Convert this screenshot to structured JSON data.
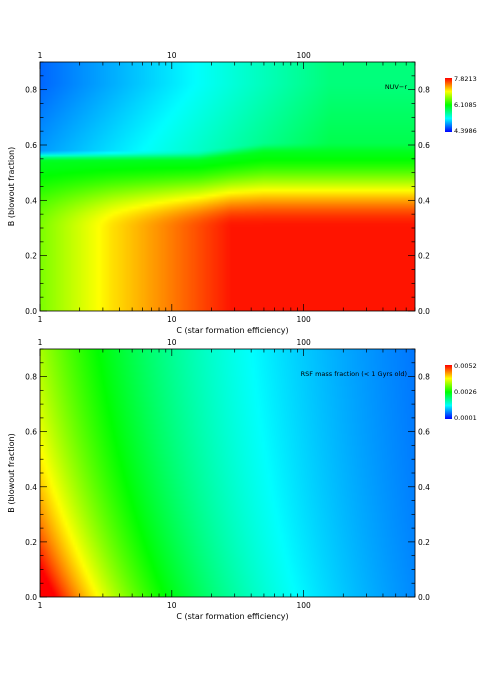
{
  "chart_data": [
    {
      "type": "heatmap",
      "annotation": "NUV−r",
      "xlabel": "C (star formation efficiency)",
      "ylabel": "B (blowout fraction)",
      "x_scale": "log",
      "xlim": [
        1,
        700
      ],
      "ylim": [
        0.0,
        0.9
      ],
      "x_ticks": [
        1,
        10,
        100
      ],
      "x_tick_labels": [
        "1",
        "10",
        "100"
      ],
      "y_ticks": [
        0.0,
        0.2,
        0.4,
        0.6,
        0.8
      ],
      "y_tick_labels": [
        "0.0",
        "0.2",
        "0.4",
        "0.6",
        "0.8"
      ],
      "colorbar": {
        "min": 4.3986,
        "mid": 6.1085,
        "max": 7.8213,
        "labels": [
          "7.8213",
          "6.1085",
          "4.3986"
        ]
      },
      "colormap": [
        "#0000ff",
        "#0080ff",
        "#00ffff",
        "#00ff80",
        "#00ff00",
        "#80ff00",
        "#ffff00",
        "#ff8000",
        "#ff0000"
      ]
    },
    {
      "type": "heatmap",
      "annotation": "RSF mass fraction (< 1 Gyrs old)",
      "xlabel": "C (star formation efficiency)",
      "ylabel": "B (blowout fraction)",
      "x_scale": "log",
      "xlim": [
        1,
        700
      ],
      "ylim": [
        0.0,
        0.9
      ],
      "x_ticks": [
        1,
        10,
        100
      ],
      "x_tick_labels": [
        "1",
        "10",
        "100"
      ],
      "y_ticks": [
        0.0,
        0.2,
        0.4,
        0.6,
        0.8
      ],
      "y_tick_labels": [
        "0.0",
        "0.2",
        "0.4",
        "0.6",
        "0.8"
      ],
      "colorbar": {
        "min": 0.0001,
        "mid": 0.0026,
        "max": 0.0052,
        "labels": [
          "0.0052",
          "0.0026",
          "0.0001"
        ]
      },
      "colormap": [
        "#0000ff",
        "#0080ff",
        "#00ffff",
        "#00ff80",
        "#00ff00",
        "#80ff00",
        "#ffff00",
        "#ff8000",
        "#ff0000"
      ]
    }
  ]
}
